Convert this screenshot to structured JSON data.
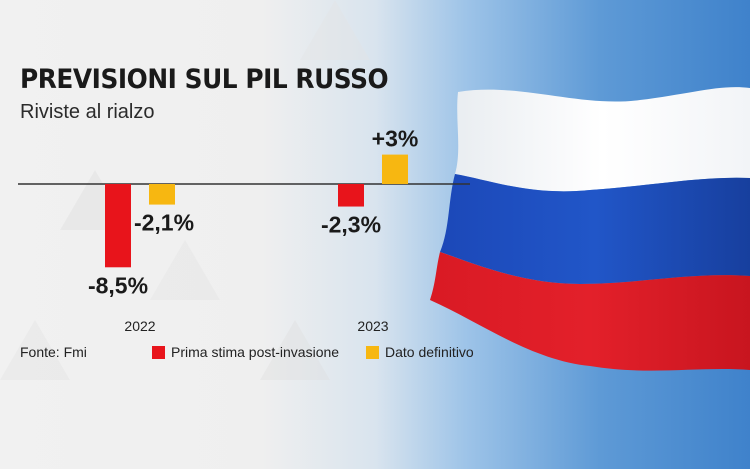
{
  "title": "PREVISIONI SUL PIL RUSSO",
  "subtitle": "Riviste al rialzo",
  "source": "Fonte: Fmi",
  "colors": {
    "prima": "#e8141b",
    "definitivo": "#f7b711",
    "text": "#1a1a1a"
  },
  "legend": [
    {
      "label": "Prima stima post-invasione",
      "color": "#e8141b"
    },
    {
      "label": "Dato definitivo",
      "color": "#f7b711"
    }
  ],
  "chart_data": {
    "type": "bar",
    "title": "PREVISIONI SUL PIL RUSSO",
    "subtitle": "Riviste al rialzo",
    "categories": [
      "2022",
      "2023"
    ],
    "series": [
      {
        "name": "Prima stima post-invasione",
        "color": "#e8141b",
        "values": [
          -8.5,
          -2.3
        ],
        "labels": [
          "-8,5%",
          "-2,3%"
        ]
      },
      {
        "name": "Dato definitivo",
        "color": "#f7b711",
        "values": [
          -2.1,
          3.0
        ],
        "labels": [
          "-2,1%",
          "+3%"
        ]
      }
    ],
    "xlabel": "",
    "ylabel": "",
    "grid": false,
    "legend_position": "bottom",
    "source": "Fonte: Fmi"
  }
}
